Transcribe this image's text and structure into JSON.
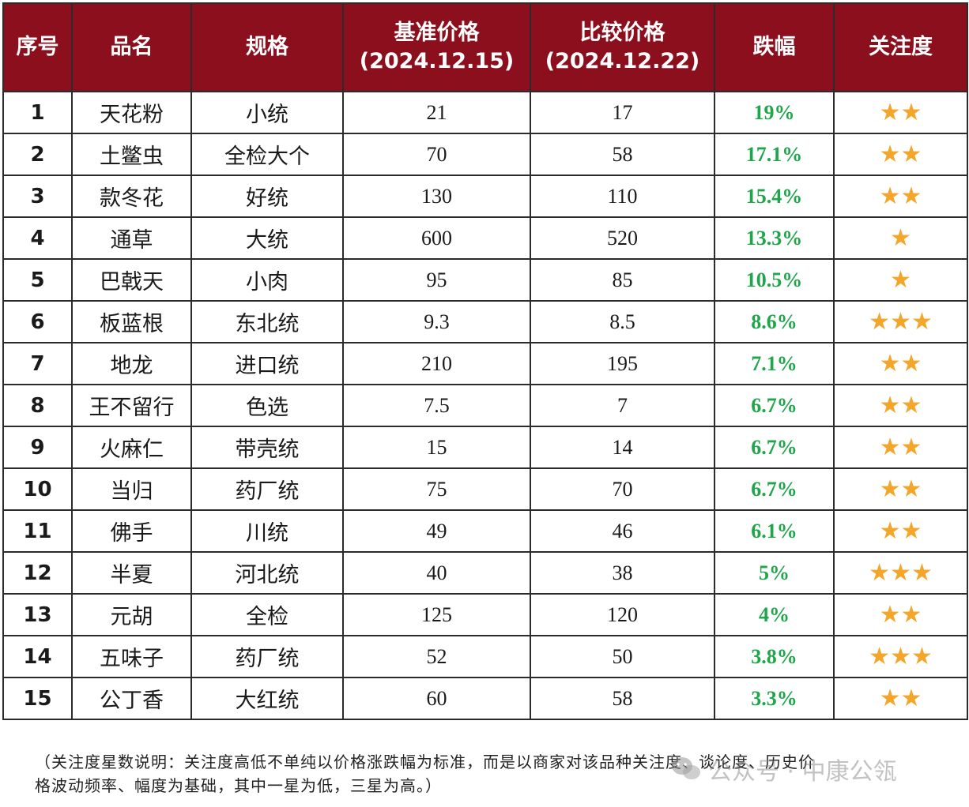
{
  "table": {
    "headers": {
      "no": "序号",
      "name": "品名",
      "spec": "规格",
      "base_price_line1": "基准价格",
      "base_price_line2": "(2024.12.15)",
      "compare_price_line1": "比较价格",
      "compare_price_line2": "(2024.12.22)",
      "drop": "跌幅",
      "attention": "关注度"
    },
    "rows": [
      {
        "no": "1",
        "name": "天花粉",
        "spec": "小统",
        "base": "21",
        "compare": "17",
        "drop": "19%",
        "stars": 2
      },
      {
        "no": "2",
        "name": "土鳖虫",
        "spec": "全检大个",
        "base": "70",
        "compare": "58",
        "drop": "17.1%",
        "stars": 2
      },
      {
        "no": "3",
        "name": "款冬花",
        "spec": "好统",
        "base": "130",
        "compare": "110",
        "drop": "15.4%",
        "stars": 2
      },
      {
        "no": "4",
        "name": "通草",
        "spec": "大统",
        "base": "600",
        "compare": "520",
        "drop": "13.3%",
        "stars": 1
      },
      {
        "no": "5",
        "name": "巴戟天",
        "spec": "小肉",
        "base": "95",
        "compare": "85",
        "drop": "10.5%",
        "stars": 1
      },
      {
        "no": "6",
        "name": "板蓝根",
        "spec": "东北统",
        "base": "9.3",
        "compare": "8.5",
        "drop": "8.6%",
        "stars": 3
      },
      {
        "no": "7",
        "name": "地龙",
        "spec": "进口统",
        "base": "210",
        "compare": "195",
        "drop": "7.1%",
        "stars": 2
      },
      {
        "no": "8",
        "name": "王不留行",
        "spec": "色选",
        "base": "7.5",
        "compare": "7",
        "drop": "6.7%",
        "stars": 2
      },
      {
        "no": "9",
        "name": "火麻仁",
        "spec": "带壳统",
        "base": "15",
        "compare": "14",
        "drop": "6.7%",
        "stars": 2
      },
      {
        "no": "10",
        "name": "当归",
        "spec": "药厂统",
        "base": "75",
        "compare": "70",
        "drop": "6.7%",
        "stars": 2
      },
      {
        "no": "11",
        "name": "佛手",
        "spec": "川统",
        "base": "49",
        "compare": "46",
        "drop": "6.1%",
        "stars": 2
      },
      {
        "no": "12",
        "name": "半夏",
        "spec": "河北统",
        "base": "40",
        "compare": "38",
        "drop": "5%",
        "stars": 3
      },
      {
        "no": "13",
        "name": "元胡",
        "spec": "全检",
        "base": "125",
        "compare": "120",
        "drop": "4%",
        "stars": 2
      },
      {
        "no": "14",
        "name": "五味子",
        "spec": "药厂统",
        "base": "52",
        "compare": "50",
        "drop": "3.8%",
        "stars": 3
      },
      {
        "no": "15",
        "name": "公丁香",
        "spec": "大红统",
        "base": "60",
        "compare": "58",
        "drop": "3.3%",
        "stars": 2
      }
    ]
  },
  "footnote": {
    "line1": "（关注度星数说明：关注度高低不单纯以价格涨跌幅为标准，而是以商家对该品种关注度、谈论度、历史价",
    "line2": "格波动频率、幅度为基础，其中一星为低，三星为高。）"
  },
  "watermark": {
    "text": "公众号 · 中康公瓴",
    "icon": "wechat-logo-icon"
  },
  "colors": {
    "header_bg": "#8b0f1c",
    "header_text": "#ffffff",
    "drop_text": "#1fa64a",
    "star": "#f4a62a",
    "border": "#2b2b2b"
  },
  "icons": {
    "star": "★"
  }
}
